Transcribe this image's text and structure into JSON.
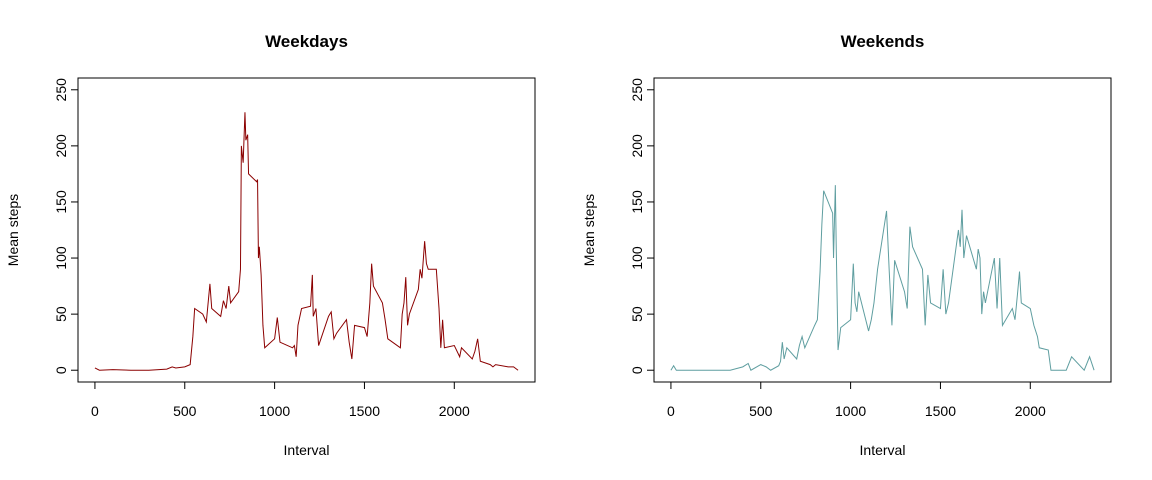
{
  "chart_data": [
    {
      "type": "line",
      "title": "Weekdays",
      "x_label": "Interval",
      "y_label": "Mean steps",
      "color": "#8b0000",
      "xlim": [
        -94.2,
        2449.2
      ],
      "ylim": [
        -10.5,
        260.5
      ],
      "xticks": [
        0,
        500,
        1000,
        1500,
        2000
      ],
      "yticks": [
        0,
        50,
        100,
        150,
        200,
        250
      ],
      "x": [
        0,
        25,
        100,
        200,
        300,
        400,
        430,
        450,
        500,
        530,
        545,
        555,
        600,
        620,
        640,
        650,
        700,
        715,
        730,
        745,
        755,
        800,
        810,
        815,
        825,
        835,
        840,
        850,
        855,
        900,
        905,
        910,
        915,
        925,
        935,
        945,
        1000,
        1015,
        1030,
        1100,
        1110,
        1120,
        1130,
        1150,
        1200,
        1210,
        1215,
        1230,
        1245,
        1300,
        1315,
        1330,
        1345,
        1400,
        1415,
        1430,
        1445,
        1500,
        1515,
        1530,
        1540,
        1550,
        1600,
        1615,
        1630,
        1700,
        1710,
        1720,
        1730,
        1740,
        1750,
        1800,
        1810,
        1820,
        1835,
        1845,
        1855,
        1900,
        1915,
        1925,
        1935,
        1945,
        2000,
        2030,
        2040,
        2100,
        2115,
        2130,
        2145,
        2200,
        2215,
        2230,
        2300,
        2330,
        2355
      ],
      "values": [
        2,
        0,
        0.5,
        0,
        0,
        1,
        3,
        2,
        3,
        5,
        30,
        55,
        50,
        43,
        77,
        55,
        48,
        62,
        55,
        75,
        60,
        70,
        90,
        200,
        185,
        230,
        205,
        210,
        175,
        168,
        170,
        100,
        110,
        85,
        40,
        20,
        28,
        47,
        25,
        20,
        22,
        12,
        40,
        55,
        57,
        85,
        48,
        55,
        22,
        48,
        52,
        28,
        33,
        45,
        25,
        10,
        40,
        38,
        30,
        60,
        95,
        75,
        60,
        45,
        28,
        20,
        50,
        60,
        83,
        40,
        50,
        72,
        90,
        82,
        115,
        95,
        90,
        90,
        55,
        20,
        45,
        20,
        22,
        12,
        20,
        10,
        17,
        28,
        8,
        5,
        3,
        5,
        3,
        3,
        0
      ]
    },
    {
      "type": "line",
      "title": "Weekends",
      "x_label": "Interval",
      "y_label": "Mean steps",
      "color": "#5f9ea0",
      "xlim": [
        -94.2,
        2449.2
      ],
      "ylim": [
        -10.5,
        260.5
      ],
      "xticks": [
        0,
        500,
        1000,
        1500,
        2000
      ],
      "yticks": [
        0,
        50,
        100,
        150,
        200,
        250
      ],
      "x": [
        0,
        15,
        30,
        100,
        200,
        330,
        400,
        430,
        445,
        500,
        530,
        555,
        600,
        610,
        620,
        630,
        645,
        700,
        715,
        730,
        745,
        800,
        815,
        830,
        840,
        850,
        900,
        905,
        915,
        920,
        930,
        945,
        1000,
        1015,
        1025,
        1035,
        1045,
        1100,
        1115,
        1130,
        1150,
        1200,
        1215,
        1230,
        1245,
        1300,
        1315,
        1330,
        1345,
        1400,
        1415,
        1430,
        1445,
        1500,
        1515,
        1530,
        1545,
        1600,
        1610,
        1620,
        1630,
        1645,
        1700,
        1710,
        1720,
        1730,
        1740,
        1750,
        1800,
        1815,
        1830,
        1845,
        1900,
        1915,
        1930,
        1940,
        1950,
        2000,
        2020,
        2040,
        2050,
        2100,
        2115,
        2200,
        2230,
        2300,
        2330,
        2355
      ],
      "values": [
        0,
        4,
        0,
        0,
        0,
        0,
        3,
        6,
        0,
        5,
        3,
        0,
        4,
        8,
        25,
        10,
        20,
        10,
        22,
        30,
        20,
        40,
        45,
        88,
        130,
        160,
        140,
        100,
        165,
        110,
        18,
        38,
        45,
        95,
        60,
        52,
        70,
        35,
        45,
        60,
        90,
        142,
        88,
        40,
        98,
        70,
        55,
        128,
        110,
        90,
        40,
        85,
        60,
        55,
        90,
        50,
        60,
        125,
        110,
        143,
        100,
        120,
        90,
        108,
        100,
        50,
        70,
        60,
        100,
        55,
        100,
        40,
        55,
        45,
        70,
        88,
        60,
        55,
        40,
        30,
        20,
        18,
        0,
        0,
        12,
        0,
        12,
        0
      ]
    }
  ]
}
